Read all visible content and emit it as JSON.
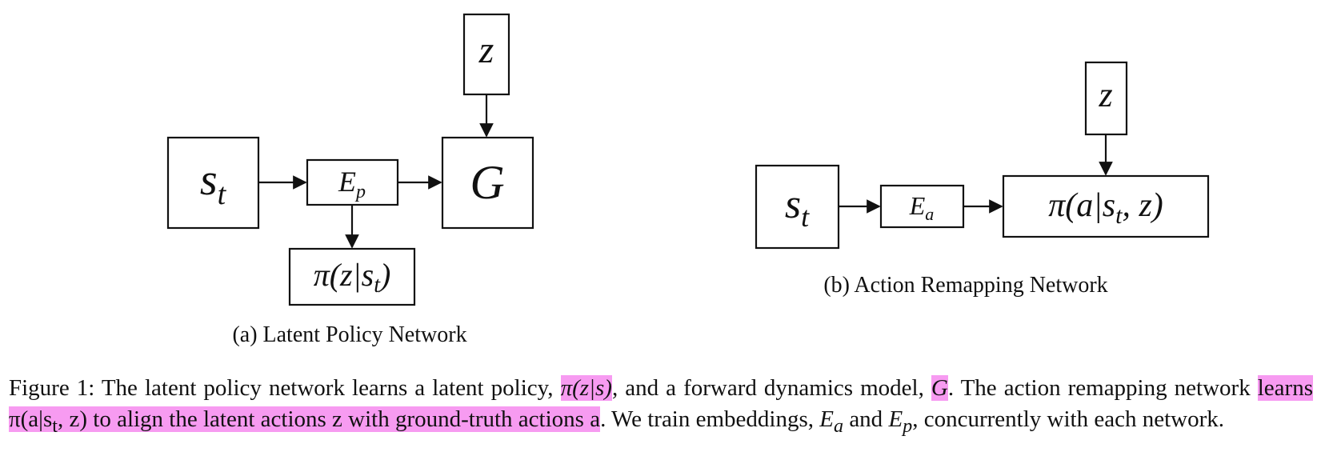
{
  "diagram_a": {
    "state_box": {
      "base": "s",
      "sub": "t"
    },
    "embedding_box": {
      "base": "E",
      "sub": "p"
    },
    "generator_box": "G",
    "latent_box": "z",
    "policy_box": {
      "prefix": "π(z|s",
      "sub": "t",
      "suffix": ")"
    },
    "caption": "(a) Latent Policy Network"
  },
  "diagram_b": {
    "state_box": {
      "base": "s",
      "sub": "t"
    },
    "embedding_box": {
      "base": "E",
      "sub": "a"
    },
    "latent_box": "z",
    "policy_box": {
      "prefix": "π(a|s",
      "sub": "t",
      "suffix": ", z)"
    },
    "caption": "(b) Action Remapping Network"
  },
  "figure_caption": {
    "part1": "Figure 1: The latent policy network learns a latent policy, ",
    "hl1": "π(z|s)",
    "part2": ", and a forward dynamics model, ",
    "hl2": "G",
    "part3": ". The action remapping network ",
    "hl3a": "learns π(a|s",
    "hl3sub": "t",
    "hl3b": ", z) to align the latent actions z with ground-truth actions a",
    "part4": ". We train embeddings, ",
    "ea_base": "E",
    "ea_sub": "a",
    "part5": " and ",
    "ep_base": "E",
    "ep_sub": "p",
    "part6": ", concurrently with each network."
  },
  "highlight_color": "#f79bf1"
}
